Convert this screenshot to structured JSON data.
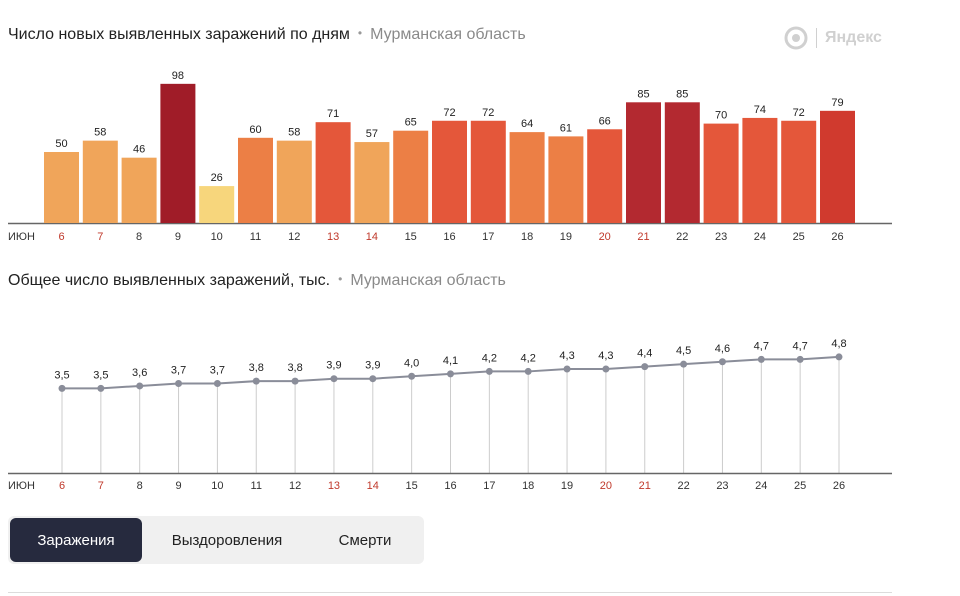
{
  "header": {
    "chart1_title": "Число новых выявленных заражений по дням",
    "chart2_title": "Общее число выявленных заражений, тыс.",
    "region": "Мурманская область",
    "separator": "•",
    "logo_text": "Яндекс"
  },
  "tabs": [
    {
      "label": "Заражения",
      "active": true
    },
    {
      "label": "Выздоровления",
      "active": false
    },
    {
      "label": "Смерти",
      "active": false
    }
  ],
  "month_label": "ИЮН",
  "colors": {
    "weekday_tick": "#333333",
    "weekend_tick": "#c0392b",
    "line": "#8a8d99",
    "point": "#8a8d99",
    "grid": "#cccccc",
    "axis": "#666666"
  },
  "chart_data": [
    {
      "type": "bar",
      "title": "Число новых выявленных заражений по дням",
      "x": [
        "6",
        "7",
        "8",
        "9",
        "10",
        "11",
        "12",
        "13",
        "14",
        "15",
        "16",
        "17",
        "18",
        "19",
        "20",
        "21",
        "22",
        "23",
        "24",
        "25",
        "26"
      ],
      "weekend": [
        true,
        true,
        false,
        false,
        false,
        false,
        false,
        true,
        true,
        false,
        false,
        false,
        false,
        false,
        true,
        true,
        false,
        false,
        false,
        false,
        false
      ],
      "values": [
        50,
        58,
        46,
        98,
        26,
        60,
        58,
        71,
        57,
        65,
        72,
        72,
        64,
        61,
        66,
        85,
        85,
        70,
        74,
        72,
        79
      ],
      "colors": [
        "#f0a55a",
        "#f0a55a",
        "#f0a55a",
        "#a01c28",
        "#f7d67c",
        "#ec7f45",
        "#f0a55a",
        "#e4573a",
        "#f0a55a",
        "#ec7f45",
        "#e4573a",
        "#e4573a",
        "#ec7f45",
        "#ec7f45",
        "#e4573a",
        "#b32930",
        "#b32930",
        "#e4573a",
        "#e4573a",
        "#e4573a",
        "#d03a2e"
      ],
      "ylim": [
        0,
        100
      ]
    },
    {
      "type": "line",
      "title": "Общее число выявленных заражений, тыс.",
      "x": [
        "6",
        "7",
        "8",
        "9",
        "10",
        "11",
        "12",
        "13",
        "14",
        "15",
        "16",
        "17",
        "18",
        "19",
        "20",
        "21",
        "22",
        "23",
        "24",
        "25",
        "26"
      ],
      "values": [
        3.5,
        3.5,
        3.6,
        3.7,
        3.7,
        3.8,
        3.8,
        3.9,
        3.9,
        4.0,
        4.1,
        4.2,
        4.2,
        4.3,
        4.3,
        4.4,
        4.5,
        4.6,
        4.7,
        4.7,
        4.8
      ],
      "labels": [
        "3,5",
        "3,5",
        "3,6",
        "3,7",
        "3,7",
        "3,8",
        "3,8",
        "3,9",
        "3,9",
        "4,0",
        "4,1",
        "4,2",
        "4,2",
        "4,3",
        "4,3",
        "4,4",
        "4,5",
        "4,6",
        "4,7",
        "4,7",
        "4,8"
      ],
      "ylim": [
        0,
        5.5
      ]
    }
  ]
}
